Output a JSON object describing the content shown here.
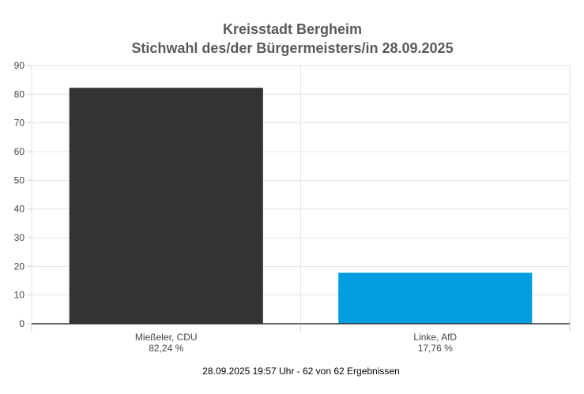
{
  "chart_data": {
    "type": "bar",
    "title": [
      "Kreisstadt Bergheim",
      "Stichwahl des/der Bürgermeisters/in 28.09.2025"
    ],
    "categories": [
      "Mießeler, CDU",
      "Linke, AfD"
    ],
    "value_labels": [
      "82,24 %",
      "17,76 %"
    ],
    "values": [
      82.24,
      17.76
    ],
    "colors": [
      "#333333",
      "#009de0"
    ],
    "ylim": [
      0,
      90
    ],
    "yticks": [
      "0",
      "10",
      "20",
      "30",
      "40",
      "50",
      "60",
      "70",
      "80",
      "90"
    ],
    "grid": true,
    "footer": "28.09.2025 19:57 Uhr - 62 von 62 Ergebnissen"
  }
}
